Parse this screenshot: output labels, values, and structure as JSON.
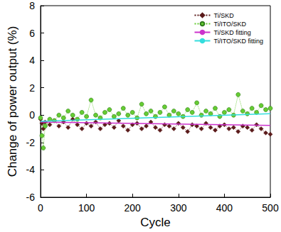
{
  "chart_data": {
    "type": "scatter",
    "x_label": "Cycle",
    "y_label": "Change of power output (%)",
    "xlim": [
      0,
      500
    ],
    "xticks": [
      0,
      100,
      200,
      300,
      400,
      500
    ],
    "ylim": [
      -6,
      8
    ],
    "yticks": [
      -6,
      -4,
      -2,
      0,
      2,
      4,
      6,
      8
    ],
    "legend": "upper right",
    "grid": false,
    "series": [
      {
        "name": "Ti/SKD",
        "type": "line",
        "marker": "diamond",
        "line_style": "dotted",
        "color": "#5a1a1a",
        "x": [
          0,
          3,
          6,
          10,
          20,
          30,
          40,
          50,
          60,
          70,
          80,
          90,
          100,
          110,
          120,
          130,
          140,
          150,
          160,
          170,
          180,
          190,
          200,
          210,
          220,
          230,
          240,
          250,
          260,
          270,
          280,
          290,
          300,
          310,
          320,
          330,
          340,
          350,
          360,
          370,
          380,
          390,
          400,
          410,
          420,
          430,
          440,
          450,
          460,
          470,
          480,
          490,
          500
        ],
        "values": [
          -0.3,
          -0.6,
          -1.0,
          -0.5,
          -0.7,
          -0.4,
          -0.8,
          -0.5,
          -0.9,
          -0.3,
          -0.7,
          -1.0,
          -0.6,
          -0.8,
          -0.5,
          -1.0,
          -0.7,
          -0.6,
          -0.9,
          -0.4,
          -0.8,
          -1.1,
          -0.7,
          -0.6,
          -1.0,
          -0.8,
          -0.5,
          -0.9,
          -1.1,
          -0.7,
          -0.8,
          -1.0,
          -0.6,
          -0.9,
          -1.2,
          -0.7,
          -0.8,
          -1.0,
          -0.6,
          -0.9,
          -1.1,
          -0.8,
          -0.7,
          -1.0,
          -0.9,
          -1.2,
          -0.8,
          -0.9,
          -1.1,
          -0.7,
          -1.0,
          -1.3,
          -1.4
        ]
      },
      {
        "name": "Ti/ITO/SKD",
        "type": "line",
        "marker": "circle",
        "line_style": "dotted",
        "color": "#66cc33",
        "x": [
          0,
          3,
          6,
          10,
          20,
          30,
          40,
          50,
          60,
          70,
          80,
          90,
          100,
          110,
          120,
          130,
          140,
          150,
          160,
          170,
          180,
          190,
          200,
          210,
          220,
          230,
          240,
          250,
          260,
          270,
          280,
          290,
          300,
          310,
          320,
          330,
          340,
          350,
          360,
          370,
          380,
          390,
          400,
          410,
          420,
          430,
          440,
          450,
          460,
          470,
          480,
          490,
          500
        ],
        "values": [
          -0.2,
          -1.5,
          -2.4,
          -0.8,
          -0.3,
          -0.4,
          0.0,
          -0.2,
          0.3,
          0.0,
          -0.3,
          0.2,
          -0.1,
          1.1,
          0.0,
          -0.2,
          0.2,
          0.4,
          -0.1,
          0.1,
          0.5,
          0.0,
          0.2,
          -0.2,
          0.8,
          0.1,
          0.3,
          -0.1,
          0.2,
          0.6,
          0.0,
          0.3,
          0.1,
          -0.1,
          0.4,
          0.2,
          0.9,
          0.0,
          0.3,
          0.1,
          0.5,
          -0.1,
          0.2,
          0.4,
          0.0,
          1.5,
          0.3,
          0.1,
          0.5,
          0.2,
          0.7,
          0.4,
          0.5
        ]
      },
      {
        "name": "Ti/SKD fitting",
        "type": "line",
        "marker": "none",
        "line_style": "solid",
        "color": "#cc33cc",
        "x": [
          0,
          500
        ],
        "values": [
          -0.5,
          -0.75
        ]
      },
      {
        "name": "Ti/ITO/SKD fitting",
        "type": "line",
        "marker": "none",
        "line_style": "solid",
        "color": "#33dddd",
        "x": [
          0,
          500
        ],
        "values": [
          -0.45,
          0.1
        ]
      }
    ]
  }
}
